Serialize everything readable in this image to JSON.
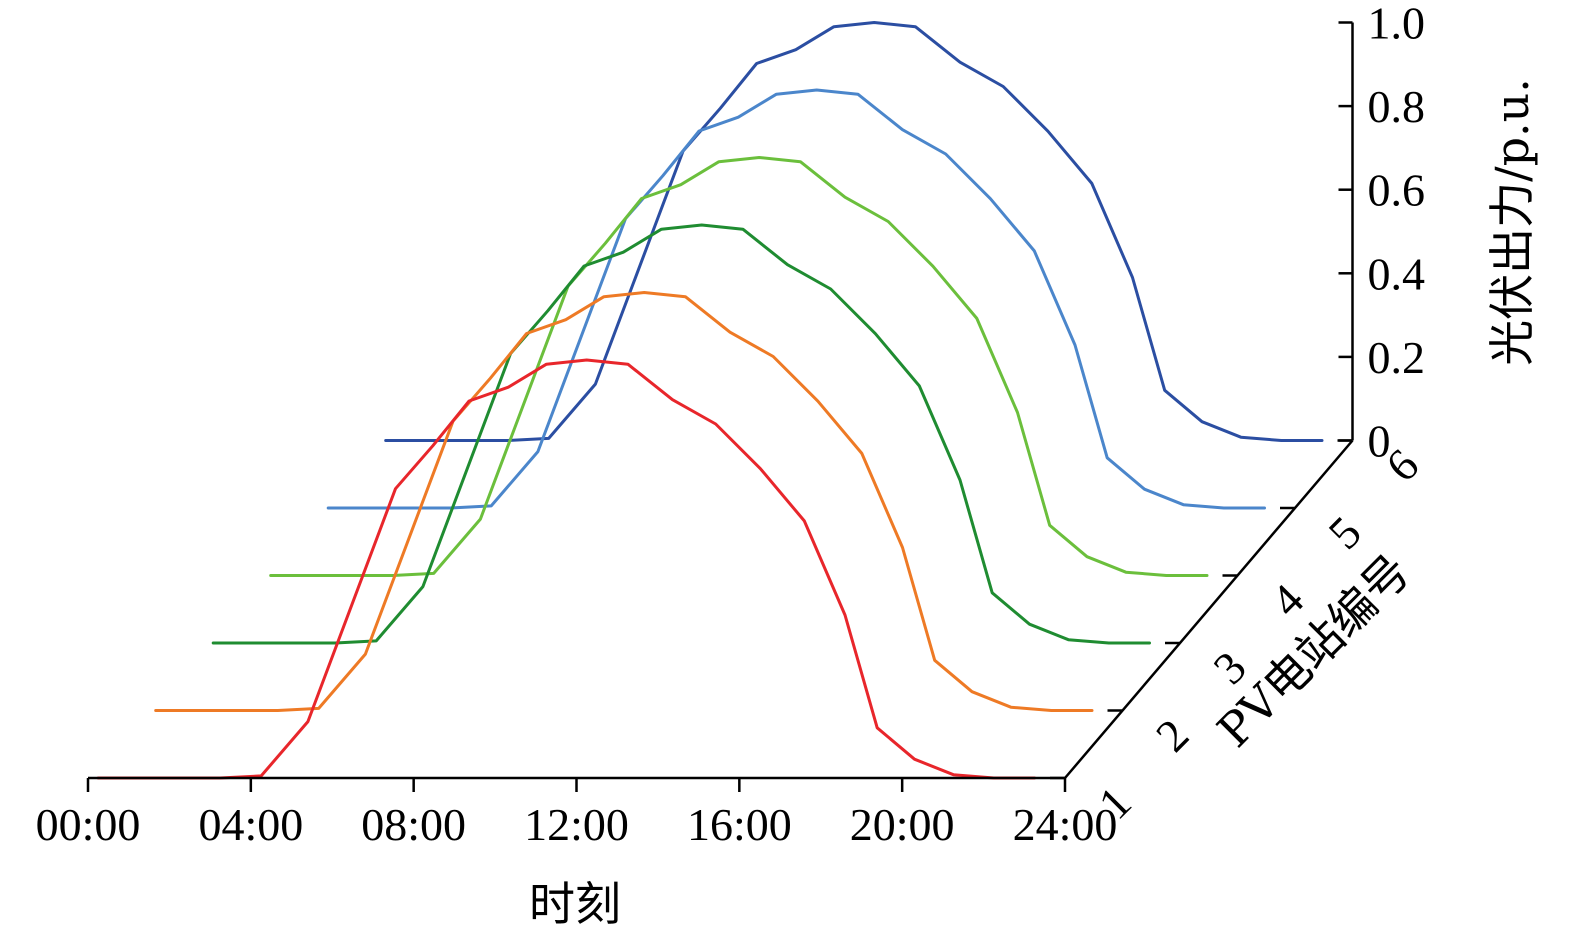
{
  "chart_data": {
    "type": "line",
    "subtype": "3d-waterfall",
    "xlabel": "时刻",
    "ylabel": "光伏出力/p.u.",
    "zlabel": "PV电站编号",
    "x_ticks": [
      "00:00",
      "04:00",
      "08:00",
      "12:00",
      "16:00",
      "20:00",
      "24:00"
    ],
    "y_ticks": [
      "0",
      "0.2",
      "0.4",
      "0.6",
      "0.8",
      "1.0"
    ],
    "z_ticks": [
      "1",
      "2",
      "3",
      "4",
      "5",
      "6"
    ],
    "xlim_hours": [
      0,
      24
    ],
    "ylim": [
      0,
      1.0
    ],
    "x_hours": [
      0.25,
      3.25,
      4.25,
      5.25,
      7.25,
      8.25,
      9.25,
      10.25,
      11.25,
      12.25,
      13.25,
      14.25,
      15.25,
      16.25,
      17.25,
      18.25,
      19.25,
      20.25,
      21.25,
      22.25,
      23.25
    ],
    "series": [
      {
        "name": "1",
        "color": "#e8262b",
        "values": [
          0,
          0,
          0.005,
          0.135,
          0.692,
          0.795,
          0.902,
          0.935,
          0.99,
          1.0,
          0.99,
          0.905,
          0.847,
          0.74,
          0.615,
          0.39,
          0.12,
          0.045,
          0.008,
          0,
          0
        ]
      },
      {
        "name": "2",
        "color": "#ee7a25",
        "values": [
          0,
          0,
          0.005,
          0.135,
          0.692,
          0.795,
          0.902,
          0.935,
          0.99,
          1.0,
          0.99,
          0.905,
          0.847,
          0.74,
          0.615,
          0.39,
          0.12,
          0.045,
          0.008,
          0,
          0
        ]
      },
      {
        "name": "3",
        "color": "#1f8c31",
        "values": [
          0,
          0,
          0.005,
          0.135,
          0.692,
          0.795,
          0.902,
          0.935,
          0.99,
          1.0,
          0.99,
          0.905,
          0.847,
          0.74,
          0.615,
          0.39,
          0.12,
          0.045,
          0.008,
          0,
          0
        ]
      },
      {
        "name": "4",
        "color": "#6bbf3c",
        "values": [
          0,
          0,
          0.005,
          0.135,
          0.692,
          0.795,
          0.902,
          0.935,
          0.99,
          1.0,
          0.99,
          0.905,
          0.847,
          0.74,
          0.615,
          0.39,
          0.12,
          0.045,
          0.008,
          0,
          0
        ]
      },
      {
        "name": "5",
        "color": "#4b86cb",
        "values": [
          0,
          0,
          0.005,
          0.135,
          0.692,
          0.795,
          0.902,
          0.935,
          0.99,
          1.0,
          0.99,
          0.905,
          0.847,
          0.74,
          0.615,
          0.39,
          0.12,
          0.045,
          0.008,
          0,
          0
        ]
      },
      {
        "name": "6",
        "color": "#2b4ea2",
        "values": [
          0,
          0,
          0.005,
          0.135,
          0.692,
          0.795,
          0.902,
          0.935,
          0.99,
          1.0,
          0.99,
          0.905,
          0.847,
          0.74,
          0.615,
          0.39,
          0.12,
          0.045,
          0.008,
          0,
          0
        ]
      }
    ],
    "grid": false,
    "legend": "none"
  }
}
